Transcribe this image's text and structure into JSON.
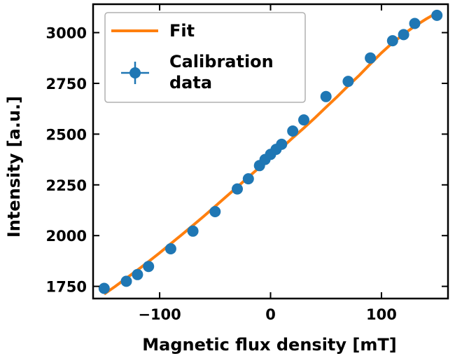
{
  "chart_data": {
    "type": "scatter",
    "title": "",
    "xlabel": "Magnetic flux density [mT]",
    "ylabel": "Intensity [a.u.]",
    "xlim": [
      -160,
      160
    ],
    "ylim": [
      1690,
      3140
    ],
    "x_ticks": [
      -100,
      0,
      100
    ],
    "x_tick_labels": [
      "−100",
      "0",
      "100"
    ],
    "y_ticks": [
      1750,
      2000,
      2250,
      2500,
      2750,
      3000
    ],
    "y_tick_labels": [
      "1750",
      "2000",
      "2250",
      "2500",
      "2750",
      "3000"
    ],
    "grid": false,
    "legend_position": "top-left",
    "series": [
      {
        "name": "Fit",
        "type": "line",
        "color": "#ff7f0e",
        "x": [
          -150,
          -140,
          -130,
          -120,
          -110,
          -100,
          -90,
          -80,
          -70,
          -60,
          -50,
          -40,
          -30,
          -20,
          -10,
          0,
          10,
          20,
          30,
          40,
          50,
          60,
          70,
          80,
          90,
          100,
          110,
          120,
          130,
          140,
          150
        ],
        "y": [
          1712,
          1750,
          1790,
          1830,
          1872,
          1915,
          1960,
          2005,
          2050,
          2096,
          2144,
          2192,
          2240,
          2288,
          2336,
          2384,
          2432,
          2482,
          2530,
          2580,
          2632,
          2684,
          2738,
          2790,
          2846,
          2900,
          2950,
          2992,
          3032,
          3066,
          3098
        ]
      },
      {
        "name": "Calibration\ndata",
        "type": "scatter",
        "color": "#1f77b4",
        "x": [
          -150,
          -130,
          -120,
          -110,
          -90,
          -70,
          -50,
          -30,
          -20,
          -10,
          -5,
          0,
          5,
          10,
          20,
          30,
          50,
          70,
          90,
          110,
          120,
          130,
          150
        ],
        "y": [
          1740,
          1775,
          1808,
          1848,
          1935,
          2022,
          2118,
          2230,
          2280,
          2345,
          2375,
          2400,
          2425,
          2450,
          2515,
          2570,
          2685,
          2760,
          2875,
          2960,
          2990,
          3045,
          3085
        ]
      }
    ]
  }
}
